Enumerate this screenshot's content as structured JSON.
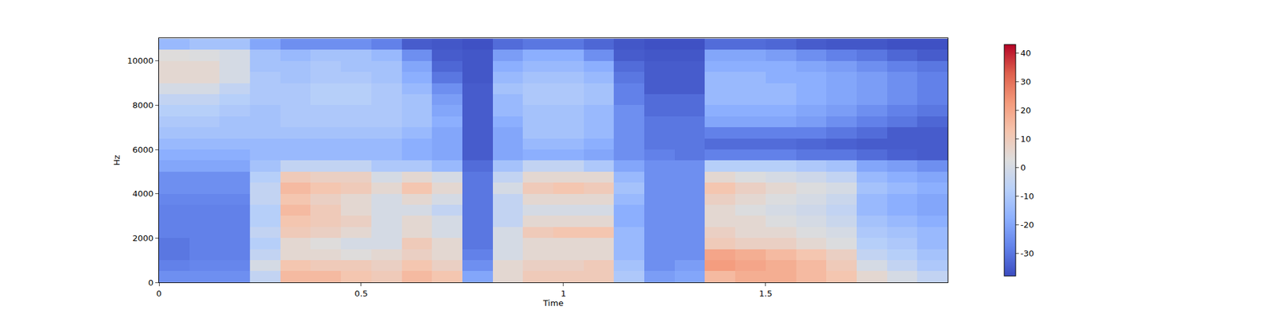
{
  "chart_data": {
    "type": "heatmap",
    "xlabel": "Time",
    "ylabel": "Hz",
    "xlim": [
      0,
      1.95
    ],
    "ylim": [
      0,
      11025
    ],
    "xticks": [
      0,
      0.5,
      1,
      1.5
    ],
    "yticks": [
      0,
      2000,
      4000,
      6000,
      8000,
      10000
    ],
    "x": [
      0.0375,
      0.1125,
      0.1875,
      0.2625,
      0.3375,
      0.4125,
      0.4875,
      0.5625,
      0.6375,
      0.7125,
      0.7875,
      0.8625,
      0.9375,
      1.0125,
      1.0875,
      1.1625,
      1.2375,
      1.3125,
      1.3875,
      1.4625,
      1.5375,
      1.6125,
      1.6875,
      1.7625,
      1.8375,
      1.9125
    ],
    "y": [
      250,
      750,
      1250,
      1750,
      2250,
      2750,
      3250,
      3750,
      4250,
      4750,
      5250,
      5750,
      6250,
      6750,
      7250,
      7750,
      8250,
      8750,
      9250,
      9750,
      10250,
      10750
    ],
    "z": [
      [
        -25,
        -25,
        -25,
        -5,
        15,
        15,
        12,
        10,
        15,
        12,
        -20,
        5,
        10,
        10,
        10,
        -10,
        -22,
        -20,
        15,
        18,
        18,
        15,
        12,
        5,
        0,
        -5
      ],
      [
        -28,
        -27,
        -27,
        0,
        12,
        10,
        10,
        8,
        12,
        8,
        -25,
        5,
        8,
        8,
        10,
        -12,
        -25,
        -22,
        22,
        20,
        18,
        15,
        10,
        0,
        -5,
        -10
      ],
      [
        -30,
        -28,
        -28,
        -5,
        5,
        5,
        3,
        5,
        8,
        5,
        -28,
        0,
        5,
        5,
        5,
        -15,
        -25,
        -25,
        20,
        18,
        15,
        12,
        8,
        -5,
        -8,
        -12
      ],
      [
        -30,
        -28,
        -28,
        -8,
        5,
        3,
        0,
        0,
        10,
        5,
        -30,
        0,
        5,
        5,
        5,
        -15,
        -25,
        -25,
        10,
        8,
        8,
        5,
        2,
        -8,
        -10,
        -15
      ],
      [
        -28,
        -28,
        -28,
        -5,
        10,
        8,
        5,
        0,
        5,
        0,
        -30,
        0,
        10,
        12,
        12,
        -15,
        -25,
        -25,
        8,
        5,
        5,
        2,
        0,
        -10,
        -12,
        -15
      ],
      [
        -28,
        -28,
        -28,
        -8,
        12,
        10,
        8,
        0,
        5,
        0,
        -30,
        -5,
        5,
        5,
        5,
        -18,
        -25,
        -25,
        5,
        5,
        2,
        0,
        -3,
        -12,
        -15,
        -18
      ],
      [
        -28,
        -28,
        -28,
        -8,
        15,
        10,
        5,
        0,
        0,
        -5,
        -30,
        -5,
        0,
        0,
        0,
        -18,
        -25,
        -25,
        5,
        2,
        0,
        -2,
        -5,
        -15,
        -18,
        -20
      ],
      [
        -27,
        -27,
        -27,
        -5,
        12,
        8,
        5,
        0,
        5,
        0,
        -30,
        -5,
        5,
        5,
        5,
        -15,
        -25,
        -25,
        8,
        5,
        2,
        0,
        -3,
        -15,
        -18,
        -20
      ],
      [
        -25,
        -25,
        -25,
        -5,
        15,
        12,
        10,
        5,
        12,
        5,
        -30,
        0,
        10,
        12,
        10,
        -12,
        -25,
        -25,
        12,
        8,
        5,
        2,
        0,
        -12,
        -15,
        -18
      ],
      [
        -25,
        -25,
        -25,
        -8,
        10,
        8,
        8,
        0,
        5,
        0,
        -30,
        -5,
        5,
        5,
        5,
        -15,
        -25,
        -25,
        5,
        2,
        0,
        -2,
        -5,
        -15,
        -18,
        -20
      ],
      [
        -20,
        -20,
        -20,
        -12,
        -5,
        -5,
        -5,
        -10,
        -10,
        -15,
        -32,
        -12,
        -5,
        -5,
        -10,
        -20,
        -25,
        -25,
        -8,
        -8,
        -8,
        -10,
        -12,
        -20,
        -22,
        -25
      ],
      [
        -18,
        -18,
        -18,
        -15,
        -15,
        -15,
        -15,
        -15,
        -18,
        -20,
        -35,
        -20,
        -18,
        -18,
        -20,
        -25,
        -28,
        -30,
        -28,
        -28,
        -28,
        -30,
        -30,
        -32,
        -34,
        -35
      ],
      [
        -15,
        -15,
        -15,
        -15,
        -15,
        -15,
        -15,
        -15,
        -18,
        -20,
        -35,
        -20,
        -15,
        -15,
        -18,
        -25,
        -30,
        -30,
        -32,
        -32,
        -32,
        -33,
        -34,
        -35,
        -35,
        -35
      ],
      [
        -12,
        -12,
        -12,
        -12,
        -12,
        -12,
        -12,
        -12,
        -15,
        -20,
        -35,
        -20,
        -12,
        -12,
        -15,
        -25,
        -30,
        -30,
        -28,
        -28,
        -28,
        -28,
        -30,
        -32,
        -35,
        -35
      ],
      [
        -10,
        -10,
        -12,
        -12,
        -10,
        -10,
        -10,
        -10,
        -12,
        -18,
        -35,
        -18,
        -12,
        -12,
        -15,
        -25,
        -30,
        -30,
        -20,
        -20,
        -20,
        -22,
        -25,
        -28,
        -30,
        -33
      ],
      [
        -8,
        -8,
        -10,
        -12,
        -10,
        -10,
        -10,
        -10,
        -12,
        -20,
        -35,
        -15,
        -12,
        -12,
        -15,
        -25,
        -32,
        -32,
        -18,
        -18,
        -18,
        -20,
        -22,
        -25,
        -28,
        -30
      ],
      [
        -5,
        -5,
        -8,
        -10,
        -10,
        -8,
        -8,
        -10,
        -12,
        -22,
        -35,
        -15,
        -10,
        -10,
        -12,
        -28,
        -32,
        -32,
        -15,
        -15,
        -15,
        -18,
        -20,
        -22,
        -25,
        -28
      ],
      [
        0,
        0,
        -5,
        -10,
        -10,
        -8,
        -8,
        -10,
        -15,
        -25,
        -35,
        -12,
        -10,
        -10,
        -12,
        -28,
        -35,
        -35,
        -15,
        -15,
        -15,
        -18,
        -20,
        -22,
        -25,
        -28
      ],
      [
        5,
        5,
        0,
        -10,
        -12,
        -10,
        -10,
        -12,
        -18,
        -30,
        -36,
        -15,
        -12,
        -12,
        -15,
        -30,
        -35,
        -35,
        -15,
        -15,
        -18,
        -18,
        -20,
        -22,
        -25,
        -28
      ],
      [
        5,
        5,
        0,
        -12,
        -12,
        -10,
        -12,
        -12,
        -20,
        -33,
        -36,
        -18,
        -15,
        -15,
        -18,
        -32,
        -35,
        -35,
        -18,
        -18,
        -18,
        -20,
        -22,
        -25,
        -28,
        -30
      ],
      [
        3,
        2,
        0,
        -12,
        -15,
        -12,
        -12,
        -15,
        -25,
        -35,
        -36,
        -22,
        -18,
        -18,
        -25,
        -35,
        -36,
        -36,
        -20,
        -20,
        -22,
        -25,
        -28,
        -30,
        -33,
        -35
      ],
      [
        -15,
        -12,
        -12,
        -20,
        -25,
        -25,
        -25,
        -28,
        -35,
        -36,
        -37,
        -32,
        -30,
        -30,
        -33,
        -36,
        -37,
        -37,
        -32,
        -32,
        -33,
        -35,
        -36,
        -36,
        -37,
        -37
      ]
    ],
    "colorbar": {
      "range": [
        -38,
        43
      ],
      "ticks": [
        -30,
        -20,
        -10,
        0,
        10,
        20,
        30,
        40
      ]
    }
  }
}
